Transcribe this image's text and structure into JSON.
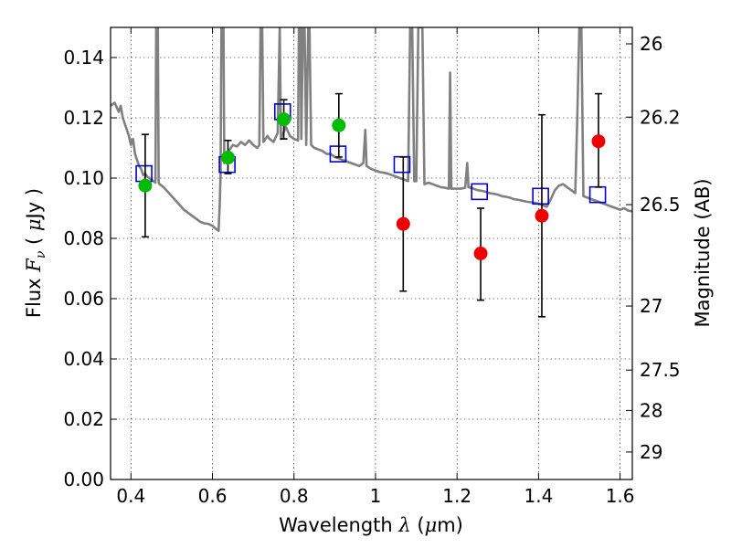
{
  "chart_data": {
    "type": "scatter",
    "xlabel": "Wavelength  λ (μm)",
    "ylabel": "Flux  F_ν  ( μJy )",
    "ylabel_parts": {
      "prefix": "Flux  ",
      "var": "F",
      "sub": "ν",
      "mid": "  (  ",
      "unit_greek": "μ",
      "unit": "Jy )"
    },
    "xlabel_parts": {
      "prefix": "Wavelength  ",
      "var": "λ",
      "open": " (",
      "mu": "μ",
      "unit": "m)"
    },
    "y2label": "Magnitude (AB)",
    "xlim": [
      0.35,
      1.63
    ],
    "ylim": [
      0.0,
      0.15
    ],
    "grid": true,
    "x_ticks": [
      0.4,
      0.6,
      0.8,
      1.0,
      1.2,
      1.4,
      1.6
    ],
    "x_tick_labels": [
      "0.4",
      "0.6",
      "0.8",
      "1",
      "1.2",
      "1.4",
      "1.6"
    ],
    "y_ticks": [
      0.0,
      0.02,
      0.04,
      0.06,
      0.08,
      0.1,
      0.12,
      0.14
    ],
    "y_tick_labels": [
      "0.00",
      "0.02",
      "0.04",
      "0.06",
      "0.08",
      "0.10",
      "0.12",
      "0.14"
    ],
    "y2_ticks": [
      {
        "mag": 26,
        "label": "26"
      },
      {
        "mag": 26.2,
        "label": "26.2"
      },
      {
        "mag": 26.5,
        "label": "26.5"
      },
      {
        "mag": 27,
        "label": "27"
      },
      {
        "mag": 27.5,
        "label": "27.5"
      },
      {
        "mag": 28,
        "label": "28"
      },
      {
        "mag": 29,
        "label": "29"
      }
    ],
    "colors": {
      "model": "#808080",
      "model_box": "#0000cc",
      "detection": "#00bb00",
      "nondetection": "#ee0000",
      "errorbar": "#000000"
    },
    "model_spectrum": [
      [
        0.35,
        0.124
      ],
      [
        0.36,
        0.125
      ],
      [
        0.37,
        0.122
      ],
      [
        0.375,
        0.124
      ],
      [
        0.38,
        0.12
      ],
      [
        0.385,
        0.118
      ],
      [
        0.39,
        0.116
      ],
      [
        0.395,
        0.114
      ],
      [
        0.4,
        0.111
      ],
      [
        0.405,
        0.113
      ],
      [
        0.41,
        0.108
      ],
      [
        0.415,
        0.106
      ],
      [
        0.42,
        0.104
      ],
      [
        0.425,
        0.103
      ],
      [
        0.43,
        0.101
      ],
      [
        0.435,
        0.1015
      ],
      [
        0.44,
        0.1005
      ],
      [
        0.445,
        0.1
      ],
      [
        0.45,
        0.0995
      ],
      [
        0.455,
        0.099
      ],
      [
        0.46,
        0.0985
      ],
      [
        0.462,
        0.15
      ],
      [
        0.466,
        0.15
      ],
      [
        0.468,
        0.0985
      ],
      [
        0.47,
        0.098
      ],
      [
        0.48,
        0.097
      ],
      [
        0.49,
        0.0955
      ],
      [
        0.5,
        0.094
      ],
      [
        0.51,
        0.0925
      ],
      [
        0.52,
        0.091
      ],
      [
        0.53,
        0.0895
      ],
      [
        0.54,
        0.0885
      ],
      [
        0.55,
        0.0875
      ],
      [
        0.56,
        0.0865
      ],
      [
        0.57,
        0.0855
      ],
      [
        0.58,
        0.085
      ],
      [
        0.59,
        0.0848
      ],
      [
        0.6,
        0.0842
      ],
      [
        0.61,
        0.083
      ],
      [
        0.615,
        0.0825
      ],
      [
        0.618,
        0.092
      ],
      [
        0.62,
        0.102
      ],
      [
        0.622,
        0.15
      ],
      [
        0.627,
        0.15
      ],
      [
        0.629,
        0.105
      ],
      [
        0.64,
        0.109
      ],
      [
        0.65,
        0.111
      ],
      [
        0.66,
        0.1105
      ],
      [
        0.67,
        0.112
      ],
      [
        0.68,
        0.111
      ],
      [
        0.69,
        0.1125
      ],
      [
        0.7,
        0.111
      ],
      [
        0.71,
        0.11
      ],
      [
        0.715,
        0.111
      ],
      [
        0.718,
        0.15
      ],
      [
        0.722,
        0.15
      ],
      [
        0.725,
        0.112
      ],
      [
        0.735,
        0.114
      ],
      [
        0.74,
        0.113
      ],
      [
        0.75,
        0.112
      ],
      [
        0.76,
        0.115
      ],
      [
        0.765,
        0.15
      ],
      [
        0.768,
        0.113
      ],
      [
        0.78,
        0.117
      ],
      [
        0.79,
        0.114
      ],
      [
        0.8,
        0.113
      ],
      [
        0.81,
        0.1125
      ],
      [
        0.812,
        0.15
      ],
      [
        0.816,
        0.15
      ],
      [
        0.818,
        0.113
      ],
      [
        0.822,
        0.15
      ],
      [
        0.826,
        0.15
      ],
      [
        0.83,
        0.111
      ],
      [
        0.835,
        0.15
      ],
      [
        0.838,
        0.15
      ],
      [
        0.842,
        0.111
      ],
      [
        0.85,
        0.11
      ],
      [
        0.86,
        0.1095
      ],
      [
        0.87,
        0.109
      ],
      [
        0.88,
        0.108
      ],
      [
        0.89,
        0.108
      ],
      [
        0.9,
        0.107
      ],
      [
        0.91,
        0.1065
      ],
      [
        0.92,
        0.106
      ],
      [
        0.93,
        0.1055
      ],
      [
        0.94,
        0.105
      ],
      [
        0.95,
        0.1045
      ],
      [
        0.96,
        0.104
      ],
      [
        0.97,
        0.105
      ],
      [
        0.975,
        0.116
      ],
      [
        0.978,
        0.104
      ],
      [
        0.99,
        0.103
      ],
      [
        1.0,
        0.1025
      ],
      [
        1.01,
        0.102
      ],
      [
        1.02,
        0.1018
      ],
      [
        1.03,
        0.1015
      ],
      [
        1.04,
        0.101
      ],
      [
        1.05,
        0.1005
      ],
      [
        1.06,
        0.1
      ],
      [
        1.07,
        0.0995
      ],
      [
        1.08,
        0.099
      ],
      [
        1.085,
        0.15
      ],
      [
        1.09,
        0.15
      ],
      [
        1.095,
        0.099
      ],
      [
        1.1,
        0.099
      ],
      [
        1.105,
        0.15
      ],
      [
        1.115,
        0.15
      ],
      [
        1.12,
        0.098
      ],
      [
        1.13,
        0.0985
      ],
      [
        1.14,
        0.098
      ],
      [
        1.15,
        0.0975
      ],
      [
        1.16,
        0.097
      ],
      [
        1.17,
        0.0968
      ],
      [
        1.18,
        0.0965
      ],
      [
        1.183,
        0.135
      ],
      [
        1.186,
        0.0965
      ],
      [
        1.19,
        0.0965
      ],
      [
        1.2,
        0.0965
      ],
      [
        1.21,
        0.0965
      ],
      [
        1.22,
        0.0968
      ],
      [
        1.225,
        0.105
      ],
      [
        1.228,
        0.097
      ],
      [
        1.24,
        0.0965
      ],
      [
        1.25,
        0.096
      ],
      [
        1.26,
        0.0958
      ],
      [
        1.27,
        0.0955
      ],
      [
        1.28,
        0.095
      ],
      [
        1.29,
        0.0948
      ],
      [
        1.3,
        0.0945
      ],
      [
        1.31,
        0.094
      ],
      [
        1.32,
        0.0938
      ],
      [
        1.33,
        0.0935
      ],
      [
        1.34,
        0.093
      ],
      [
        1.35,
        0.0928
      ],
      [
        1.36,
        0.0925
      ],
      [
        1.37,
        0.0922
      ],
      [
        1.38,
        0.092
      ],
      [
        1.39,
        0.0918
      ],
      [
        1.4,
        0.0915
      ],
      [
        1.41,
        0.091
      ],
      [
        1.42,
        0.0905
      ],
      [
        1.43,
        0.093
      ],
      [
        1.44,
        0.096
      ],
      [
        1.45,
        0.0975
      ],
      [
        1.46,
        0.098
      ],
      [
        1.47,
        0.097
      ],
      [
        1.48,
        0.096
      ],
      [
        1.49,
        0.095
      ],
      [
        1.495,
        0.12
      ],
      [
        1.5,
        0.15
      ],
      [
        1.505,
        0.15
      ],
      [
        1.51,
        0.094
      ],
      [
        1.52,
        0.0935
      ],
      [
        1.53,
        0.093
      ],
      [
        1.54,
        0.0925
      ],
      [
        1.55,
        0.092
      ],
      [
        1.56,
        0.0915
      ],
      [
        1.57,
        0.091
      ],
      [
        1.58,
        0.0905
      ],
      [
        1.59,
        0.09
      ],
      [
        1.6,
        0.0895
      ],
      [
        1.61,
        0.09
      ],
      [
        1.62,
        0.0892
      ],
      [
        1.63,
        0.089
      ]
    ],
    "model_boxes": [
      {
        "x": 0.432,
        "y": 0.1015
      },
      {
        "x": 0.636,
        "y": 0.1045
      },
      {
        "x": 0.772,
        "y": 0.122
      },
      {
        "x": 0.908,
        "y": 0.108
      },
      {
        "x": 1.065,
        "y": 0.1045
      },
      {
        "x": 1.255,
        "y": 0.0955
      },
      {
        "x": 1.405,
        "y": 0.094
      },
      {
        "x": 1.545,
        "y": 0.0945
      }
    ],
    "observations": [
      {
        "x": 0.435,
        "y": 0.0975,
        "yerr_low": 0.0805,
        "yerr_high": 0.1145,
        "kind": "detection"
      },
      {
        "x": 0.638,
        "y": 0.1068,
        "yerr_low": 0.1015,
        "yerr_high": 0.1125,
        "kind": "detection"
      },
      {
        "x": 0.775,
        "y": 0.1195,
        "yerr_low": 0.113,
        "yerr_high": 0.126,
        "kind": "detection"
      },
      {
        "x": 0.91,
        "y": 0.1175,
        "yerr_low": 0.107,
        "yerr_high": 0.128,
        "kind": "detection"
      },
      {
        "x": 1.068,
        "y": 0.0848,
        "yerr_low": 0.0625,
        "yerr_high": 0.107,
        "kind": "nondetection"
      },
      {
        "x": 1.258,
        "y": 0.075,
        "yerr_low": 0.0595,
        "yerr_high": 0.09,
        "kind": "nondetection"
      },
      {
        "x": 1.408,
        "y": 0.0875,
        "yerr_low": 0.054,
        "yerr_high": 0.121,
        "kind": "nondetection"
      },
      {
        "x": 1.547,
        "y": 0.1122,
        "yerr_low": 0.097,
        "yerr_high": 0.128,
        "kind": "nondetection"
      }
    ]
  }
}
